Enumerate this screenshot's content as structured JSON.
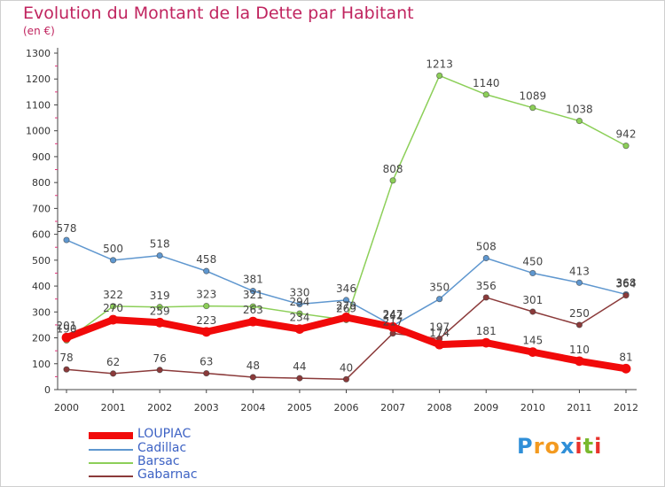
{
  "header": {
    "title": "Evolution du Montant de la Dette par Habitant",
    "subtitle": "(en €)"
  },
  "logo": {
    "text": "Proxiti",
    "letters": [
      "P",
      "r",
      "o",
      "x",
      "i",
      "t",
      "i"
    ],
    "colors": [
      "#2f8fd8",
      "#f39a1f",
      "#f39a1f",
      "#2f8fd8",
      "#e8322c",
      "#7ab92e",
      "#e8322c"
    ]
  },
  "chart_data": {
    "type": "line",
    "title": "Evolution du Montant de la Dette par Habitant",
    "subtitle": "(en €)",
    "xlabel": "",
    "ylabel": "",
    "x": [
      "2000",
      "2001",
      "2002",
      "2003",
      "2004",
      "2005",
      "2006",
      "2007",
      "2008",
      "2009",
      "2010",
      "2011",
      "2012"
    ],
    "ylim": [
      0,
      1300
    ],
    "yticks": [
      0,
      100,
      200,
      300,
      400,
      500,
      600,
      700,
      800,
      900,
      1000,
      1100,
      1200,
      1300
    ],
    "grid": false,
    "legend_position": "bottom-left",
    "series": [
      {
        "name": "LOUPIAC",
        "color": "#f10a0a",
        "values": [
          201,
          270,
          259,
          223,
          263,
          234,
          279,
          242,
          174,
          181,
          145,
          110,
          81
        ],
        "labels": [
          "201",
          "270",
          "259",
          "223",
          "263",
          "234",
          "279",
          "242",
          "174",
          "181",
          "145",
          "110",
          "81"
        ]
      },
      {
        "name": "Cadillac",
        "color": "#5f97cf",
        "values": [
          578,
          500,
          518,
          458,
          381,
          330,
          346,
          247,
          350,
          508,
          450,
          413,
          368
        ],
        "labels": [
          "578",
          "500",
          "518",
          "458",
          "381",
          "330",
          "346",
          "247",
          "350",
          "508",
          "450",
          "413",
          "368"
        ]
      },
      {
        "name": "Barsac",
        "color": "#8ccf58",
        "values": [
          190,
          322,
          319,
          323,
          321,
          294,
          269,
          808,
          1213,
          1140,
          1089,
          1038,
          942
        ],
        "labels": [
          "190",
          "322",
          "319",
          "323",
          "321",
          "294",
          "269",
          "808",
          "1213",
          "1140",
          "1089",
          "1038",
          "942"
        ]
      },
      {
        "name": "Gabarnac",
        "color": "#8b3a3a",
        "values": [
          78,
          62,
          76,
          63,
          48,
          44,
          40,
          217,
          197,
          356,
          301,
          250,
          364
        ],
        "labels": [
          "78",
          "62",
          "76",
          "63",
          "48",
          "44",
          "40",
          "217",
          "197",
          "356",
          "301",
          "250",
          "364"
        ]
      }
    ]
  }
}
